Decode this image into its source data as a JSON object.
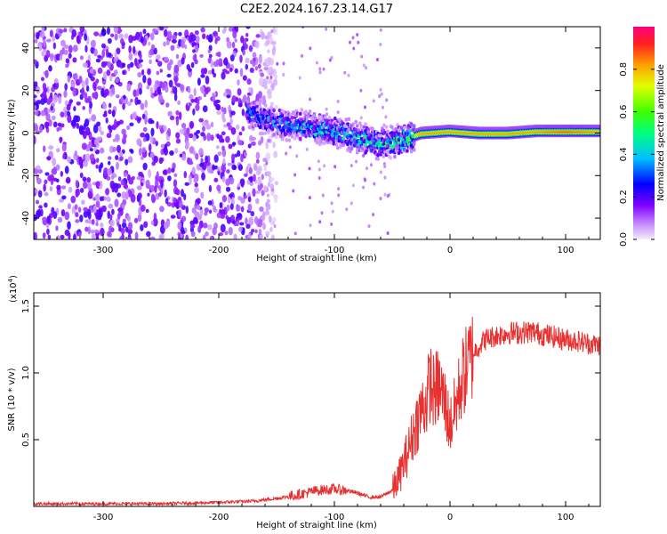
{
  "title": "C2E2.2024.167.23.14.G17",
  "colors": {
    "snr_line": "#e83030",
    "colorbar_stops": [
      "#f4eefa",
      "#c080ff",
      "#8000ff",
      "#0000ff",
      "#00c0ff",
      "#00ff80",
      "#40ff00",
      "#e0ff00",
      "#ffa000",
      "#ff2020",
      "#ff0080"
    ]
  },
  "chart_data": [
    {
      "type": "heatmap",
      "title": "C2E2.2024.167.23.14.G17",
      "xlabel": "Height of straight line (km)",
      "ylabel": "Frequency (Hz)",
      "xlim": [
        -360,
        130
      ],
      "ylim": [
        -50,
        50
      ],
      "x_ticks": [
        -300,
        -200,
        -100,
        0,
        100
      ],
      "x_tick_labels": [
        "-300",
        "-200",
        "-100",
        "0",
        "100"
      ],
      "y_ticks": [
        -40,
        -20,
        0,
        20,
        40
      ],
      "y_tick_labels": [
        "-40",
        "-20",
        "0",
        "20",
        "40"
      ],
      "grid": false,
      "ridge": {
        "description_points_x": [
          -175,
          -160,
          -140,
          -120,
          -100,
          -80,
          -60,
          -40,
          -25,
          0,
          25,
          50,
          75,
          100,
          130
        ],
        "frequency_hz": [
          10,
          6,
          4,
          3,
          1,
          -2,
          -5,
          -3,
          0,
          1,
          0,
          0,
          1,
          1,
          1
        ],
        "peak_amplitude": [
          0.3,
          0.35,
          0.4,
          0.45,
          0.45,
          0.5,
          0.55,
          0.6,
          0.85,
          0.85,
          0.85,
          0.85,
          0.85,
          0.9,
          0.85
        ]
      },
      "noise_region_x": [
        -360,
        -160
      ],
      "colorbar": {
        "label": "Normalized spectral amplitude",
        "range": [
          0,
          1
        ],
        "ticks": [
          0,
          0.2,
          0.4,
          0.6,
          0.8
        ],
        "tick_labels": [
          "0.0",
          "0.2",
          "0.4",
          "0.6",
          "0.8"
        ]
      }
    },
    {
      "type": "line",
      "xlabel": "Height of straight line (km)",
      "ylabel": "SNR (10 * v/v)",
      "y_scale_label": "(x10",
      "y_scale_exponent": "4",
      "y_scale_suffix": ")",
      "xlim": [
        -360,
        130
      ],
      "ylim": [
        0.0,
        1.6
      ],
      "x_ticks": [
        -300,
        -200,
        -100,
        0,
        100
      ],
      "x_tick_labels": [
        "-300",
        "-200",
        "-100",
        "0",
        "100"
      ],
      "y_ticks": [
        0.5,
        1.0,
        1.5
      ],
      "y_tick_labels": [
        "0.5",
        "1.0",
        "1.5"
      ],
      "grid": false,
      "series": [
        {
          "x": [
            -360,
            -300,
            -250,
            -200,
            -170,
            -150,
            -130,
            -115,
            -100,
            -90,
            -80,
            -70,
            -60,
            -50,
            -45,
            -40,
            -35,
            -30,
            -25,
            -20,
            -17,
            -15,
            -10,
            -5,
            0,
            5,
            10,
            15,
            20,
            25,
            30,
            40,
            50,
            60,
            70,
            80,
            90,
            100,
            110,
            120,
            130
          ],
          "y": [
            0.02,
            0.02,
            0.02,
            0.03,
            0.04,
            0.06,
            0.09,
            0.12,
            0.13,
            0.12,
            0.1,
            0.07,
            0.07,
            0.12,
            0.2,
            0.32,
            0.45,
            0.6,
            0.72,
            0.8,
            0.95,
            0.85,
            0.9,
            0.8,
            0.6,
            0.75,
            0.95,
            1.05,
            1.15,
            1.2,
            1.25,
            1.28,
            1.3,
            1.3,
            1.31,
            1.29,
            1.27,
            1.25,
            1.24,
            1.22,
            1.21
          ]
        }
      ]
    }
  ]
}
